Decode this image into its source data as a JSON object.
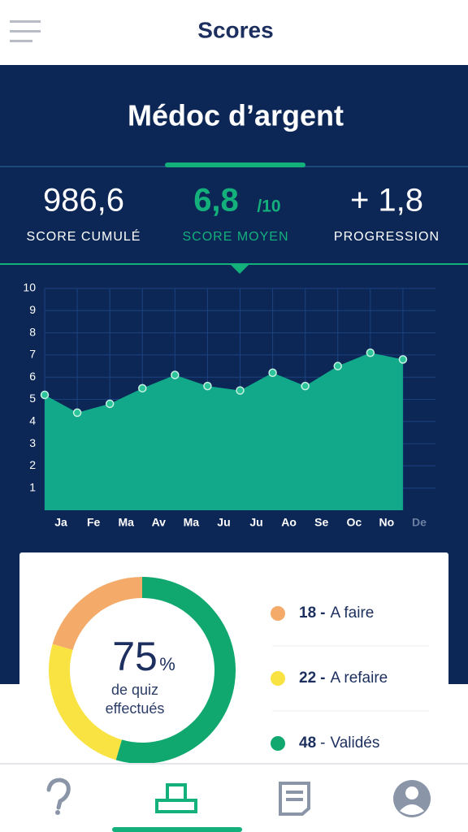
{
  "header": {
    "title": "Scores"
  },
  "banner": {
    "title": "Médoc d’argent"
  },
  "stats": [
    {
      "value": "986,6",
      "label": "SCORE CUMULÉ"
    },
    {
      "value": "6,8",
      "suffix": "/10",
      "label": "SCORE MOYEN"
    },
    {
      "value": "+ 1,8",
      "label": "PROGRESSION"
    }
  ],
  "chart_data": [
    {
      "type": "area",
      "categories": [
        "Ja",
        "Fe",
        "Ma",
        "Av",
        "Ma",
        "Ju",
        "Ju",
        "Ao",
        "Se",
        "Oc",
        "No",
        "De"
      ],
      "values": [
        5.2,
        4.4,
        4.8,
        5.5,
        6.1,
        5.6,
        5.4,
        6.2,
        5.6,
        6.5,
        7.1,
        6.8
      ],
      "color": "#12a98a",
      "ylim": [
        0,
        10
      ],
      "yticks": [
        1,
        2,
        3,
        4,
        5,
        6,
        7,
        8,
        9,
        10
      ],
      "grid": true
    },
    {
      "type": "donut",
      "categories": [
        "A faire",
        "A refaire",
        "Validés"
      ],
      "values": [
        18,
        22,
        48
      ],
      "colors": [
        "#f4ab6a",
        "#f9e343",
        "#10a86e"
      ],
      "separator": "-",
      "center": {
        "value": "75",
        "unit": "%",
        "caption": [
          "de quiz",
          "effectués"
        ]
      }
    }
  ]
}
